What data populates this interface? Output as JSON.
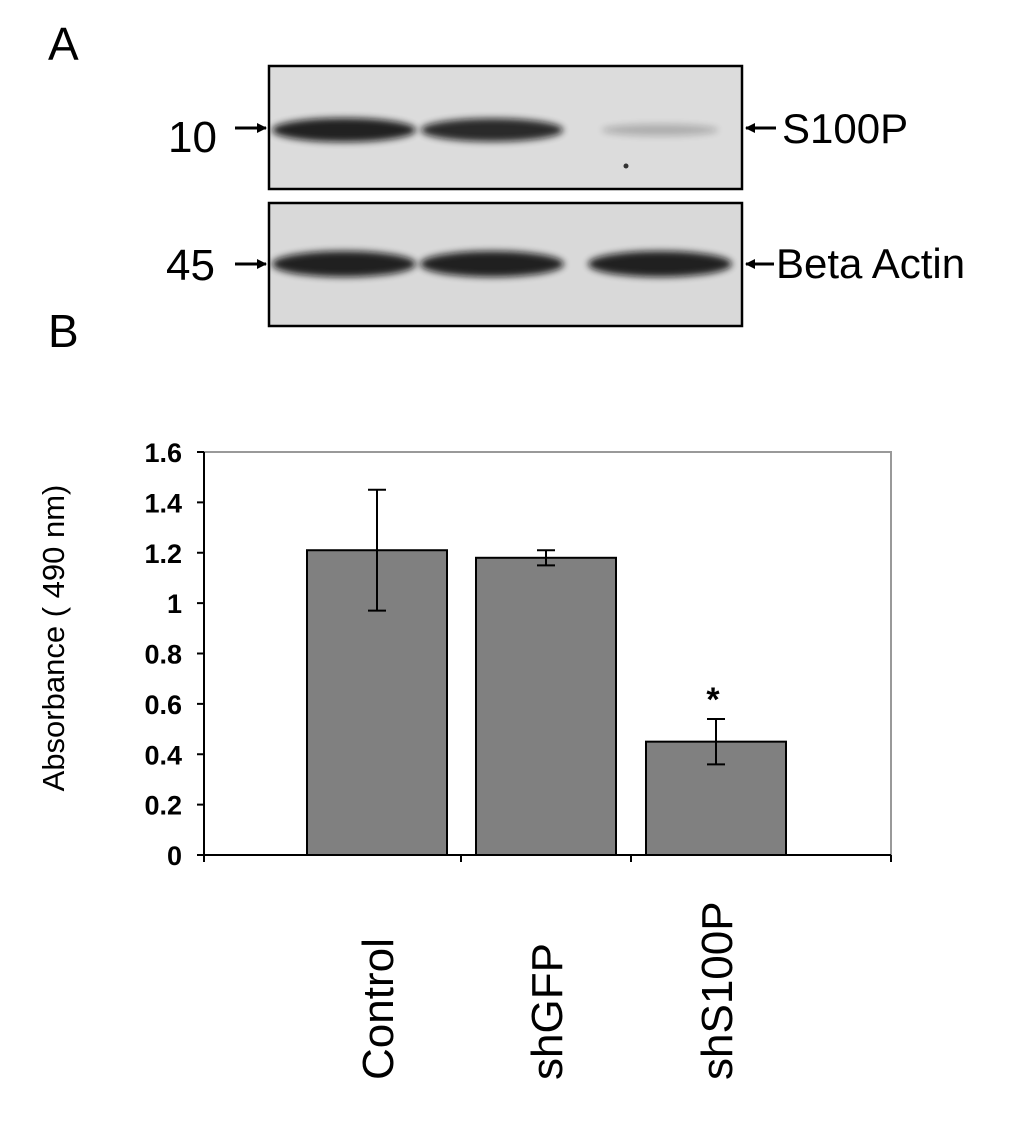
{
  "panel_a": {
    "letter": "A",
    "top_blot": {
      "mw": "10",
      "label": "S100P",
      "band_intensity": [
        1.0,
        0.95,
        0.15
      ]
    },
    "bottom_blot": {
      "mw": "45",
      "label": "Beta Actin",
      "band_intensity": [
        1.0,
        1.0,
        1.0
      ]
    }
  },
  "panel_b": {
    "letter": "B"
  },
  "chart_data": {
    "type": "bar",
    "categories": [
      "Control",
      "shGFP",
      "shS100P"
    ],
    "values": [
      1.21,
      1.18,
      0.45
    ],
    "errors": [
      0.24,
      0.03,
      0.09
    ],
    "annotations": [
      "",
      "",
      "*"
    ],
    "ylabel": "Absorbance ( 490 nm)",
    "ylim": [
      0,
      1.6
    ],
    "yticks": [
      "0",
      "0.2",
      "0.4",
      "0.6",
      "0.8",
      "1",
      "1.2",
      "1.4",
      "1.6"
    ],
    "grid": false,
    "colors": {
      "bar": "#808080",
      "frame": "#999999"
    }
  }
}
